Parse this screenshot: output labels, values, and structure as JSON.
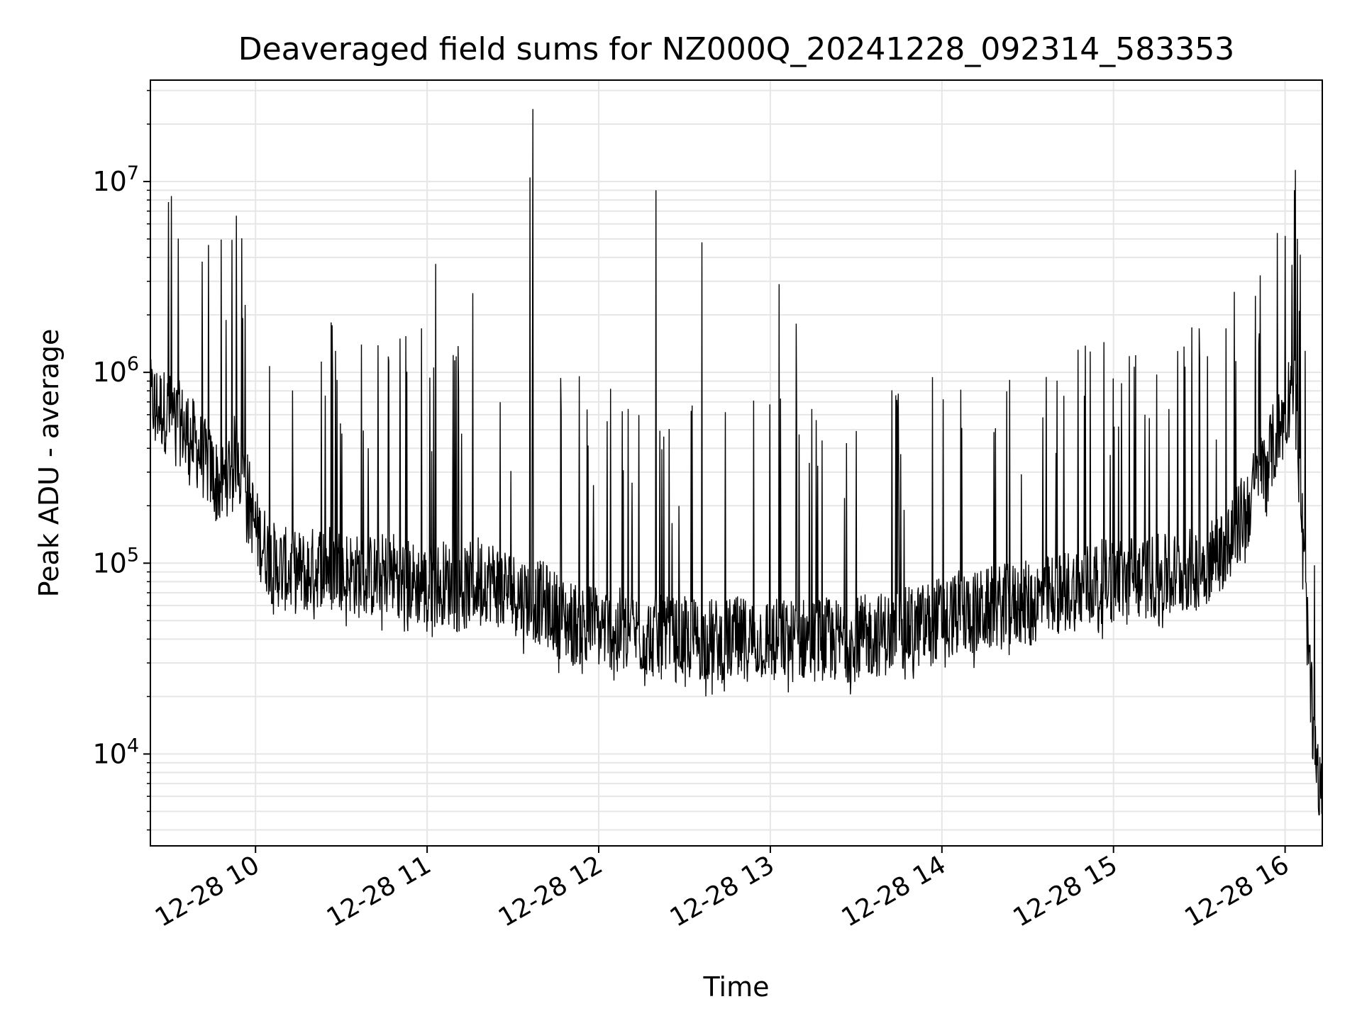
{
  "chart_data": {
    "type": "line",
    "title": "Deaveraged field sums for NZ000Q_20241228_092314_583353",
    "xlabel": "Time",
    "ylabel": "Peak ADU - average",
    "yscale": "log",
    "ylim": [
      3300,
      34000000
    ],
    "xlim": [
      "2024-12-28 09:23:14",
      "2024-12-28 16:13:00"
    ],
    "grid": true,
    "legend": "none",
    "line_color": "#000000",
    "x_ticks": [
      "2024-12-28 10:00",
      "2024-12-28 11:00",
      "2024-12-28 12:00",
      "2024-12-28 13:00",
      "2024-12-28 14:00",
      "2024-12-28 15:00",
      "2024-12-28 16:00"
    ],
    "x_tick_labels": [
      "12-28 10",
      "12-28 11",
      "12-28 12",
      "12-28 13",
      "12-28 14",
      "12-28 15",
      "12-28 16"
    ],
    "y_ticks": [
      10000,
      100000,
      1000000,
      10000000
    ],
    "y_tick_labels": [
      {
        "base": "10",
        "exp": "4"
      },
      {
        "base": "10",
        "exp": "5"
      },
      {
        "base": "10",
        "exp": "6"
      },
      {
        "base": "10",
        "exp": "7"
      }
    ],
    "series": [
      {
        "x": [
          "2024-12-28 09:24",
          "2024-12-28 09:30",
          "2024-12-28 09:36",
          "2024-12-28 09:42",
          "2024-12-28 09:48",
          "2024-12-28 09:54",
          "2024-12-28 10:00",
          "2024-12-28 10:06",
          "2024-12-28 10:12",
          "2024-12-28 10:18",
          "2024-12-28 10:24",
          "2024-12-28 10:30",
          "2024-12-28 10:36",
          "2024-12-28 10:42",
          "2024-12-28 10:48",
          "2024-12-28 10:54",
          "2024-12-28 11:00",
          "2024-12-28 11:06",
          "2024-12-28 11:12",
          "2024-12-28 11:18",
          "2024-12-28 11:24",
          "2024-12-28 11:30",
          "2024-12-28 11:36",
          "2024-12-28 11:42",
          "2024-12-28 11:48",
          "2024-12-28 11:54",
          "2024-12-28 12:00",
          "2024-12-28 12:06",
          "2024-12-28 12:12",
          "2024-12-28 12:18",
          "2024-12-28 12:24",
          "2024-12-28 12:30",
          "2024-12-28 12:36",
          "2024-12-28 12:42",
          "2024-12-28 12:48",
          "2024-12-28 12:54",
          "2024-12-28 13:00",
          "2024-12-28 13:06",
          "2024-12-28 13:12",
          "2024-12-28 13:18",
          "2024-12-28 13:24",
          "2024-12-28 13:30",
          "2024-12-28 13:36",
          "2024-12-28 13:42",
          "2024-12-28 13:48",
          "2024-12-28 13:54",
          "2024-12-28 14:00",
          "2024-12-28 14:06",
          "2024-12-28 14:12",
          "2024-12-28 14:18",
          "2024-12-28 14:24",
          "2024-12-28 14:30",
          "2024-12-28 14:36",
          "2024-12-28 14:42",
          "2024-12-28 14:48",
          "2024-12-28 14:54",
          "2024-12-28 15:00",
          "2024-12-28 15:06",
          "2024-12-28 15:12",
          "2024-12-28 15:18",
          "2024-12-28 15:24",
          "2024-12-28 15:30",
          "2024-12-28 15:36",
          "2024-12-28 15:42",
          "2024-12-28 15:48",
          "2024-12-28 15:54",
          "2024-12-28 16:00",
          "2024-12-28 16:03",
          "2024-12-28 16:06",
          "2024-12-28 16:09",
          "2024-12-28 16:12"
        ],
        "base": [
          700000,
          600000,
          500000,
          350000,
          250000,
          400000,
          150000,
          100000,
          90000,
          90000,
          100000,
          95000,
          85000,
          85000,
          90000,
          80000,
          75000,
          80000,
          70000,
          85000,
          80000,
          70000,
          65000,
          60000,
          50000,
          48000,
          47000,
          45000,
          43000,
          42000,
          40000,
          40000,
          40000,
          39000,
          40000,
          40000,
          40000,
          39000,
          40000,
          40000,
          39000,
          40000,
          42000,
          43000,
          45000,
          48000,
          52000,
          55000,
          55000,
          58000,
          60000,
          62000,
          65000,
          70000,
          75000,
          80000,
          80000,
          85000,
          85000,
          85000,
          90000,
          95000,
          110000,
          140000,
          220000,
          350000,
          600000,
          1000000,
          150000,
          20000,
          6000
        ],
        "spikes": [
          [
            "2024-12-28 10:58",
            1700000
          ],
          [
            "2024-12-28 11:03",
            3700000
          ],
          [
            "2024-12-28 11:16",
            2600000
          ],
          [
            "2024-12-28 11:37",
            24000000
          ],
          [
            "2024-12-28 11:36",
            10500000
          ],
          [
            "2024-12-28 12:20",
            9000000
          ],
          [
            "2024-12-28 12:36",
            4800000
          ],
          [
            "2024-12-28 13:03",
            2900000
          ],
          [
            "2024-12-28 13:09",
            1800000
          ],
          [
            "2024-12-28 15:30",
            1700000
          ],
          [
            "2024-12-28 15:51",
            1600000
          ],
          [
            "2024-12-28 16:05",
            2100000
          ]
        ],
        "min_observed": 4800
      }
    ]
  }
}
